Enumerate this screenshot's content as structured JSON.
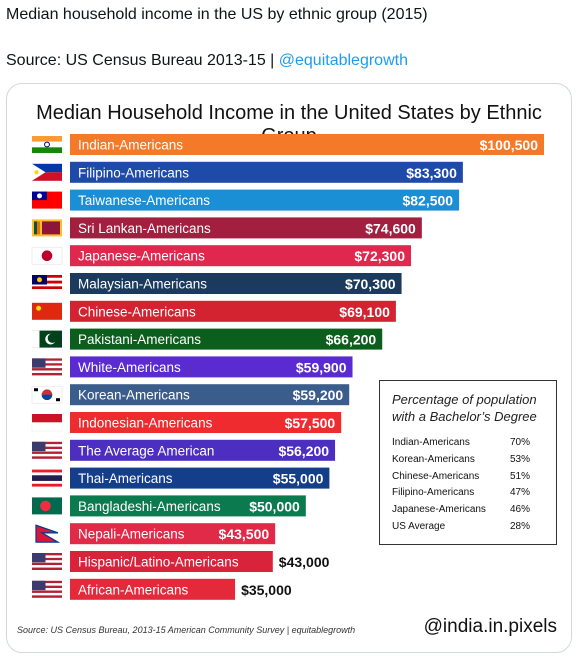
{
  "tweet": {
    "line1": "Median household income in the US by ethnic group (2015)",
    "source_prefix": "Source: US Census Bureau 2013-15 | ",
    "source_link": "@equitablegrowth"
  },
  "chart_data": {
    "type": "bar",
    "orientation": "horizontal",
    "title": "Median Household Income in the United States  by Ethnic Group",
    "categories": [
      "Indian-Americans",
      "Filipino-Americans",
      "Taiwanese-Americans",
      "Sri Lankan-Americans",
      "Japanese-Americans",
      "Malaysian-Americans",
      "Chinese-Americans",
      "Pakistani-Americans",
      "White-Americans",
      "Korean-Americans",
      "Indonesian-Americans",
      "The Average American",
      "Thai-Americans",
      "Bangladeshi-Americans",
      "Nepali-Americans",
      "Hispanic/Latino-Americans",
      "African-Americans"
    ],
    "values": [
      100500,
      83300,
      82500,
      74600,
      72300,
      70300,
      69100,
      66200,
      59900,
      59200,
      57500,
      56200,
      55000,
      50000,
      43500,
      43000,
      35000
    ],
    "value_labels": [
      "$100,500",
      "$83,300",
      "$82,500",
      "$74,600",
      "$72,300",
      "$70,300",
      "$69,100",
      "$66,200",
      "$59,900",
      "$59,200",
      "$57,500",
      "$56,200",
      "$55,000",
      "$50,000",
      "$43,500",
      "$43,000",
      "$35,000"
    ],
    "bar_colors": [
      "#f47a2a",
      "#1e4aa8",
      "#1a8fd6",
      "#a31f3f",
      "#e0284f",
      "#1b3a5e",
      "#d42330",
      "#0b5e1c",
      "#5a2bd0",
      "#3b5d8c",
      "#ee2b2f",
      "#4c2fc0",
      "#153e8a",
      "#0b7a4e",
      "#e02a48",
      "#d8233a",
      "#e42a3a"
    ],
    "flags": [
      "india-flag",
      "philippines-flag",
      "taiwan-flag",
      "sri-lanka-flag",
      "japan-flag",
      "malaysia-flag",
      "china-flag",
      "pakistan-flag",
      "usa-flag",
      "south-korea-flag",
      "indonesia-flag",
      "usa-flag",
      "thailand-flag",
      "bangladesh-flag",
      "nepal-flag",
      "usa-flag",
      "usa-flag"
    ],
    "legend": {
      "title": "Percentage of population with a Bachelor’s Degree",
      "rows": [
        {
          "name": "Indian-Americans",
          "value": "70%"
        },
        {
          "name": "Korean-Americans",
          "value": "53%"
        },
        {
          "name": "Chinese-Americans",
          "value": "51%"
        },
        {
          "name": "Filipino-Americans",
          "value": "47%"
        },
        {
          "name": "Japanese-Americans",
          "value": "46%"
        },
        {
          "name": "US Average",
          "value": "28%"
        }
      ]
    },
    "source": "Source: US Census Bureau, 2013-15 American Community Survey | equitablegrowth",
    "watermark": "@india.in.pixels",
    "grid": false
  }
}
